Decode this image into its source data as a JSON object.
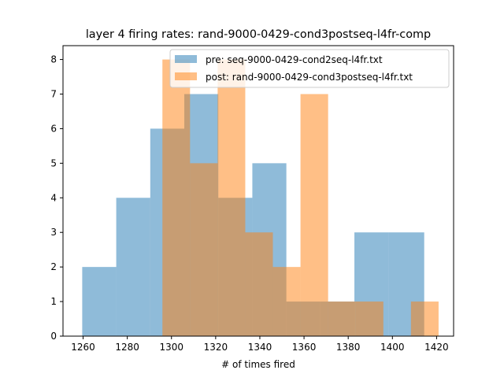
{
  "chart_data": {
    "type": "histogram",
    "title": "layer 4 firing rates: rand-9000-0429-cond3postseq-l4fr-comp",
    "xlabel": "# of times fired",
    "ylabel": "",
    "xlim": [
      1250.9,
      1427.7
    ],
    "ylim": [
      0,
      8.4
    ],
    "xticks": [
      1260,
      1280,
      1300,
      1320,
      1340,
      1360,
      1380,
      1400,
      1420
    ],
    "yticks": [
      0,
      1,
      2,
      3,
      4,
      5,
      6,
      7,
      8
    ],
    "grid": false,
    "legend_location": "upper right",
    "series": [
      {
        "name": "pre: seq-9000-0429-cond2seq-l4fr.txt",
        "color": "#1f77b4",
        "alpha": 0.5,
        "bin_edges": [
          1259.6,
          1275.0,
          1290.4,
          1305.8,
          1321.2,
          1336.6,
          1352.0,
          1367.4,
          1382.8,
          1398.2,
          1414.4
        ],
        "counts": [
          2,
          4,
          6,
          7,
          4,
          5,
          1,
          1,
          3,
          3
        ]
      },
      {
        "name": "post: rand-9000-0429-cond3postseq-l4fr.txt",
        "color": "#ff7f0e",
        "alpha": 0.5,
        "bin_edges": [
          1295.9,
          1308.4,
          1320.9,
          1333.4,
          1345.9,
          1358.4,
          1370.9,
          1383.4,
          1395.9,
          1408.4,
          1420.9
        ],
        "counts": [
          8,
          5,
          8,
          3,
          2,
          7,
          1,
          1,
          0,
          1
        ]
      }
    ]
  }
}
